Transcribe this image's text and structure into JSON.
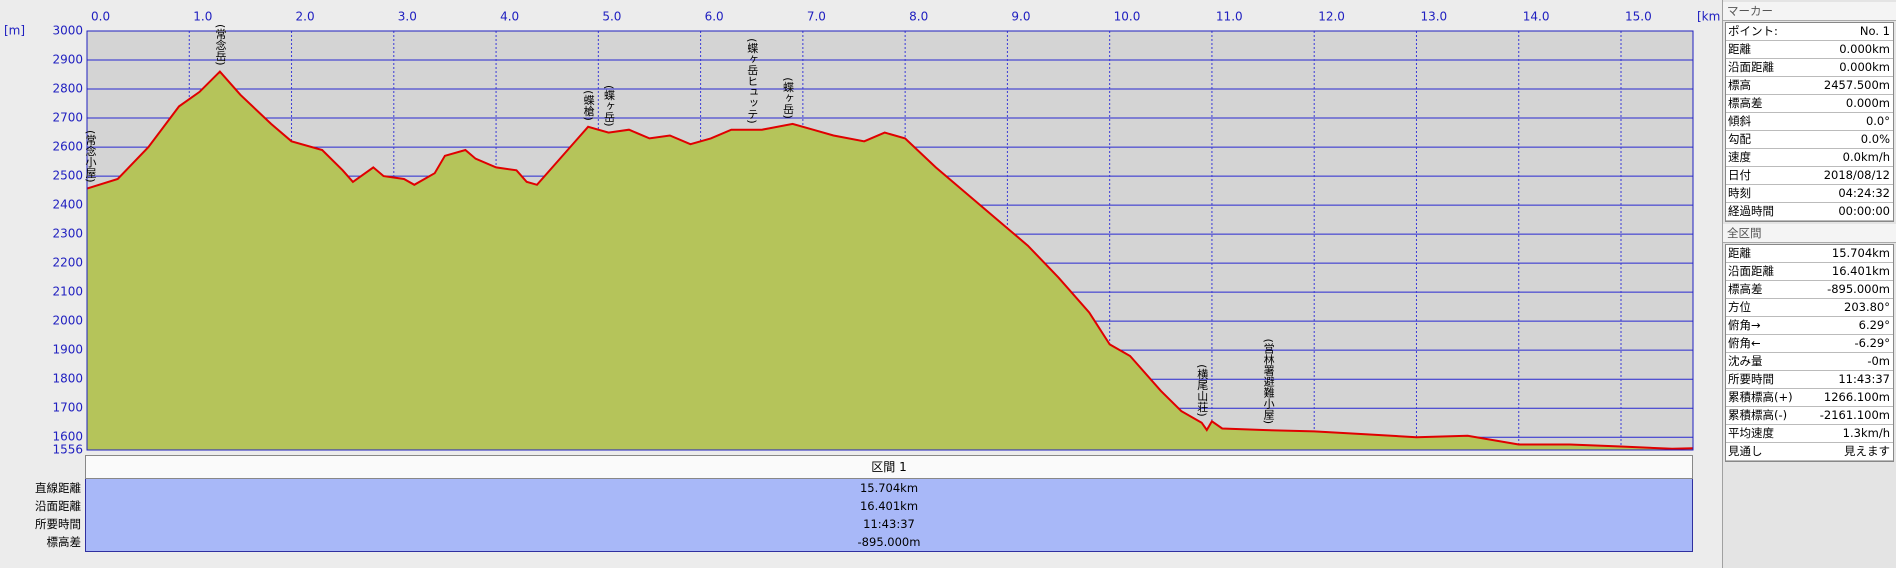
{
  "chart_data": {
    "type": "line",
    "x_unit": "[km]",
    "y_unit": "[m]",
    "x": [
      0,
      0.3,
      0.6,
      0.9,
      1.1,
      1.3,
      1.5,
      1.8,
      2.0,
      2.3,
      2.5,
      2.6,
      2.8,
      2.9,
      3.1,
      3.2,
      3.4,
      3.5,
      3.7,
      3.8,
      4.0,
      4.2,
      4.3,
      4.4,
      4.6,
      4.8,
      4.9,
      5.1,
      5.3,
      5.5,
      5.7,
      5.9,
      6.1,
      6.3,
      6.6,
      6.9,
      7.1,
      7.3,
      7.6,
      7.8,
      8.0,
      8.3,
      8.6,
      8.9,
      9.2,
      9.5,
      9.8,
      10.0,
      10.2,
      10.5,
      10.7,
      10.9,
      10.95,
      11.0,
      11.1,
      11.5,
      12.0,
      12.5,
      13.0,
      13.5,
      14.0,
      14.5,
      15.0,
      15.5,
      15.704
    ],
    "series": [
      {
        "color": "#e00000",
        "fill": "#b5c45a",
        "values": [
          2457,
          2490,
          2600,
          2740,
          2790,
          2860,
          2780,
          2680,
          2620,
          2590,
          2520,
          2480,
          2530,
          2500,
          2490,
          2470,
          2510,
          2570,
          2590,
          2560,
          2530,
          2520,
          2480,
          2470,
          2550,
          2630,
          2670,
          2650,
          2660,
          2630,
          2640,
          2610,
          2630,
          2660,
          2660,
          2680,
          2660,
          2640,
          2620,
          2650,
          2630,
          2530,
          2440,
          2350,
          2260,
          2150,
          2030,
          1920,
          1880,
          1760,
          1690,
          1650,
          1625,
          1655,
          1630,
          1625,
          1620,
          1610,
          1600,
          1605,
          1575,
          1575,
          1568,
          1560,
          1562
        ]
      }
    ],
    "xlim": [
      0,
      15.704
    ],
    "ylim": [
      1556,
      3000
    ],
    "xticks": [
      {
        "value": 0,
        "label": "0.0"
      },
      {
        "value": 1,
        "label": "1.0"
      },
      {
        "value": 2,
        "label": "2.0"
      },
      {
        "value": 3,
        "label": "3.0"
      },
      {
        "value": 4,
        "label": "4.0"
      },
      {
        "value": 5,
        "label": "5.0"
      },
      {
        "value": 6,
        "label": "6.0"
      },
      {
        "value": 7,
        "label": "7.0"
      },
      {
        "value": 8,
        "label": "8.0"
      },
      {
        "value": 9,
        "label": "9.0"
      },
      {
        "value": 10,
        "label": "10.0"
      },
      {
        "value": 11,
        "label": "11.0"
      },
      {
        "value": 12,
        "label": "12.0"
      },
      {
        "value": 13,
        "label": "13.0"
      },
      {
        "value": 14,
        "label": "14.0"
      },
      {
        "value": 15,
        "label": "15.0"
      }
    ],
    "yticks": [
      1556,
      1600,
      1700,
      1800,
      1900,
      2000,
      2100,
      2200,
      2300,
      2400,
      2500,
      2600,
      2700,
      2800,
      2900,
      3000
    ],
    "grid": true,
    "annotations": [
      {
        "text": "(常念小屋)",
        "x": 0
      },
      {
        "text": "(常念岳)",
        "x": 1.3
      },
      {
        "text": "(蝶槍)",
        "x": 4.9
      },
      {
        "text": "(蝶ヶ岳)",
        "x": 5.1
      },
      {
        "text": "(蝶ヶ岳ヒュッテ)",
        "x": 6.5
      },
      {
        "text": "(蝶ヶ岳)",
        "x": 6.85
      },
      {
        "text": "(横尾山荘)",
        "x": 10.9
      },
      {
        "text": "(営林署避難小屋)",
        "x": 11.55
      }
    ]
  },
  "section": {
    "title": "区間 1",
    "rows": [
      [
        "直線距離",
        "15.704km"
      ],
      [
        "沿面距離",
        "16.401km"
      ],
      [
        "所要時間",
        "11:43:37"
      ],
      [
        "標高差",
        "-895.000m"
      ]
    ]
  },
  "marker_panel": {
    "title": "マーカー",
    "rows": [
      [
        "ポイント:",
        "No. 1"
      ],
      [
        "距離",
        "0.000km"
      ],
      [
        "沿面距離",
        "0.000km"
      ],
      [
        "標高",
        "2457.500m"
      ],
      [
        "標高差",
        "0.000m"
      ],
      [
        "傾斜",
        "0.0°"
      ],
      [
        "勾配",
        "0.0%"
      ],
      [
        "速度",
        "0.0km/h"
      ],
      [
        "日付",
        "2018/08/12"
      ],
      [
        "時刻",
        "04:24:32"
      ],
      [
        "経過時間",
        "00:00:00"
      ]
    ]
  },
  "total_panel": {
    "title": "全区間",
    "rows": [
      [
        "距離",
        "15.704km"
      ],
      [
        "沿面距離",
        "16.401km"
      ],
      [
        "標高差",
        "-895.000m"
      ],
      [
        "方位",
        "203.80°"
      ],
      [
        "俯角→",
        "6.29°"
      ],
      [
        "俯角←",
        "-6.29°"
      ],
      [
        "沈み量",
        "-0m"
      ],
      [
        "所要時間",
        "11:43:37"
      ],
      [
        "累積標高(+)",
        "1266.100m"
      ],
      [
        "累積標高(-)",
        "-2161.100m"
      ],
      [
        "平均速度",
        "1.3km/h"
      ],
      [
        "見通し",
        "見えます"
      ]
    ]
  }
}
